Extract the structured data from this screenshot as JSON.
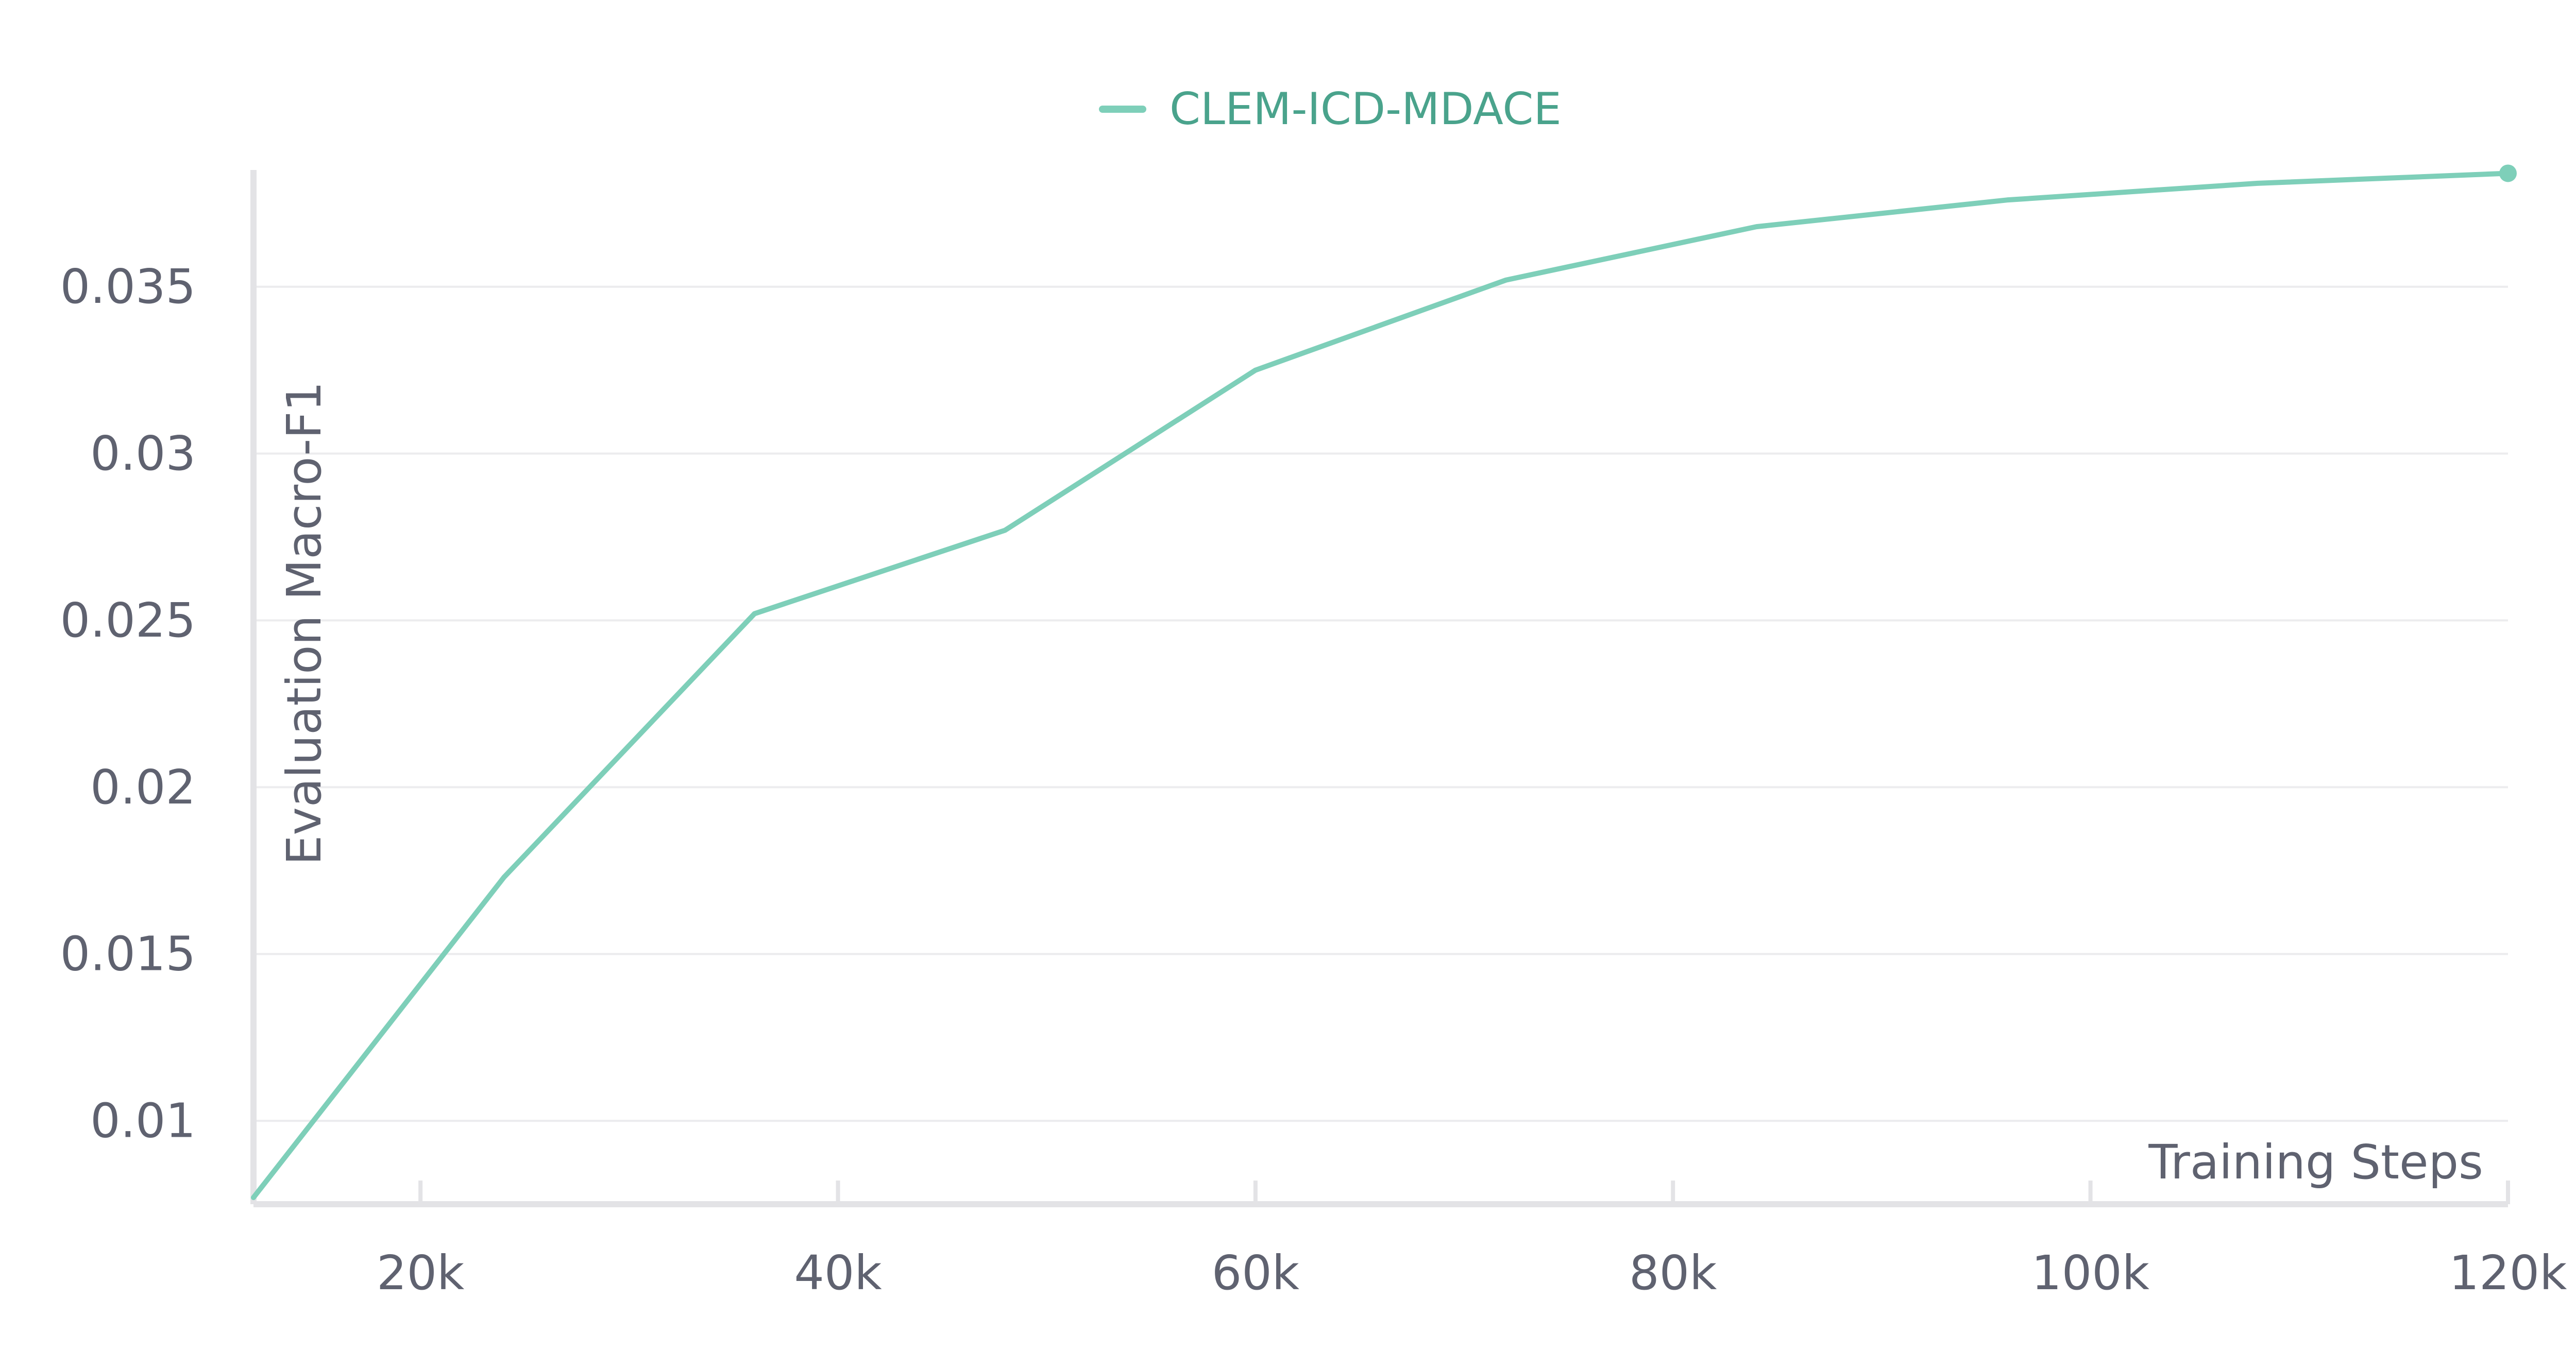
{
  "chart_data": {
    "type": "line",
    "title": "",
    "xlabel": "Training Steps",
    "ylabel": "Evaluation Macro-F1",
    "legend_position": "top-center",
    "grid": {
      "horizontal": true,
      "vertical": false
    },
    "xlim": [
      12000,
      120000
    ],
    "ylim": [
      0.0075,
      0.0385
    ],
    "x_ticks": [
      20000,
      40000,
      60000,
      80000,
      100000,
      120000
    ],
    "x_tick_labels": [
      "20k",
      "40k",
      "60k",
      "80k",
      "100k",
      "120k"
    ],
    "y_ticks": [
      0.01,
      0.015,
      0.02,
      0.025,
      0.03,
      0.035
    ],
    "y_tick_labels": [
      "0.01",
      "0.015",
      "0.02",
      "0.025",
      "0.03",
      "0.035"
    ],
    "series": [
      {
        "name": "CLEM-ICD-MDACE",
        "color": "#7ecfb9",
        "legend_text_color": "#4aa38c",
        "x": [
          12000,
          24000,
          36000,
          48000,
          60000,
          72000,
          84000,
          96000,
          108000,
          120000
        ],
        "y": [
          0.0077,
          0.0173,
          0.0252,
          0.0277,
          0.0325,
          0.0352,
          0.0368,
          0.0376,
          0.0381,
          0.0384
        ]
      }
    ]
  },
  "colors": {
    "axis": "#e3e3e6",
    "grid": "#ececee",
    "text": "#5f6270"
  }
}
